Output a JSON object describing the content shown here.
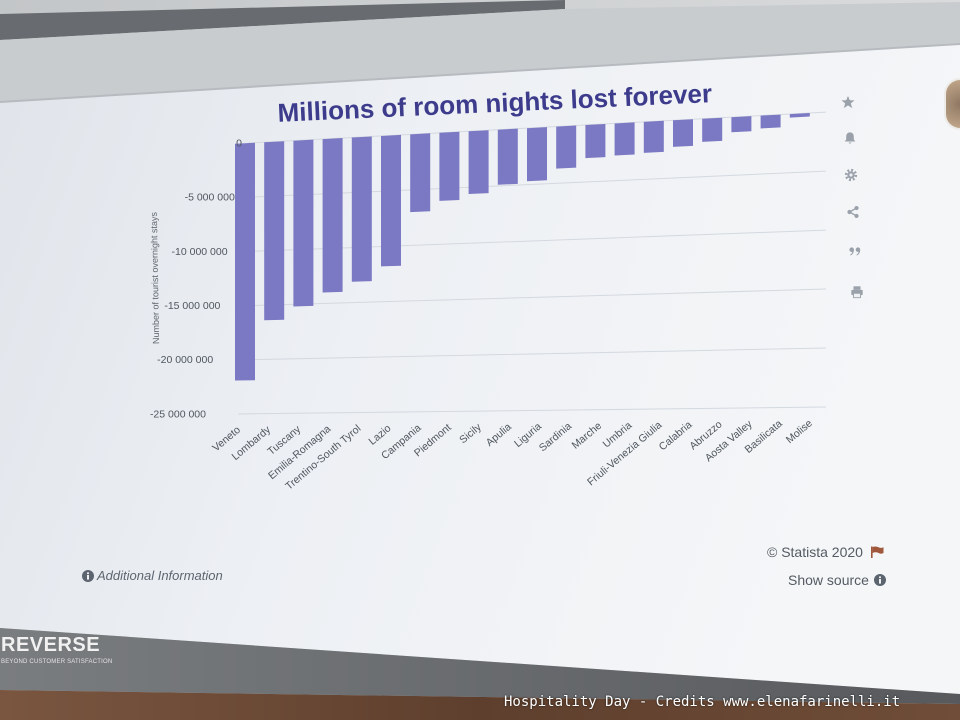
{
  "chart_data": {
    "type": "bar",
    "title": "Millions of room nights lost forever",
    "ylabel": "Number of tourist overnight stays",
    "ylim": [
      -25000000,
      0
    ],
    "yticks": [
      0,
      -5000000,
      -10000000,
      -15000000,
      -20000000,
      -25000000
    ],
    "ytick_labels": [
      "0",
      "-5 000 000",
      "-10 000 000",
      "-15 000 000",
      "-20 000 000",
      "-25 000 000"
    ],
    "grid": true,
    "categories": [
      "Veneto",
      "Lombardy",
      "Tuscany",
      "Emilia-Romagna",
      "Trentino-South Tyrol",
      "Lazio",
      "Campania",
      "Piedmont",
      "Sicily",
      "Apulia",
      "Liguria",
      "Sardinia",
      "Marche",
      "Umbria",
      "Friuli-Venezia Giulia",
      "Calabria",
      "Abruzzo",
      "Aosta Valley",
      "Basilicata",
      "Molise"
    ],
    "values": [
      -21900000,
      -16400000,
      -15200000,
      -14000000,
      -13100000,
      -11800000,
      -7000000,
      -6100000,
      -5600000,
      -4900000,
      -4700000,
      -3700000,
      -2900000,
      -2800000,
      -2700000,
      -2300000,
      -2000000,
      -1300000,
      -1100000,
      -300000
    ]
  },
  "footer": {
    "copyright": "© Statista 2020",
    "additional_info": "Additional Information",
    "show_source": "Show source"
  },
  "toolbar": {
    "icons": [
      "star-icon",
      "bell-icon",
      "gear-icon",
      "share-icon",
      "quote-icon",
      "print-icon"
    ]
  },
  "logo": {
    "name": "REVERSE",
    "tagline": "BEYOND CUSTOMER SATISFACTION"
  },
  "watermark": "Hospitality Day - Credits www.elenafarinelli.it",
  "colors": {
    "bar": "#7b78c4",
    "title": "#3d3b8c",
    "gridline": "#d4d9e0",
    "icon": "#9aa1aa",
    "flag": "#a0583c"
  }
}
